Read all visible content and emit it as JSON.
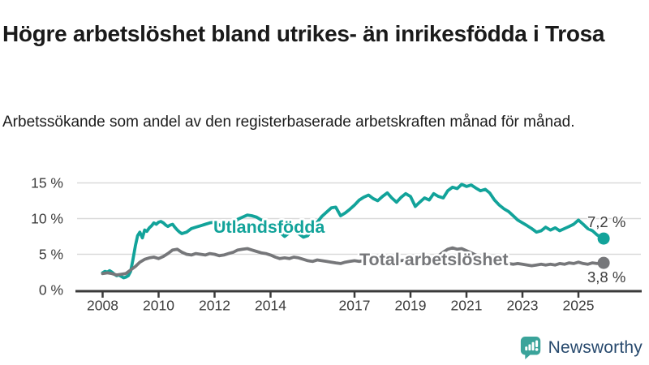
{
  "header": {
    "title": "Högre arbetslöshet bland utrikes- än inrikesfödda i Trosa",
    "subtitle": "Arbetssökande som andel av den registerbaserade arbetskraften månad för månad."
  },
  "footer": {
    "brand": "Newsworthy",
    "brand_color": "#27496d",
    "icon": "bar-chart-speech-bubble-icon",
    "icon_color": "#3aa39a"
  },
  "chart_data": {
    "type": "line",
    "title": "Högre arbetslöshet bland utrikes- än inrikesfödda i Trosa",
    "xlabel": "",
    "ylabel": "",
    "grid": true,
    "legend_position": "inline-labels",
    "xlim": [
      2007.0,
      2027.2
    ],
    "ylim": [
      0,
      15
    ],
    "x_ticks": [
      2008,
      2010,
      2012,
      2014,
      2017,
      2019,
      2021,
      2023,
      2025
    ],
    "y_ticks": {
      "values": [
        0,
        5,
        10,
        15
      ],
      "labels": [
        "0 %",
        "5 %",
        "10 %",
        "15 %"
      ]
    },
    "colors": {
      "grid": "#d9d9d9",
      "axis": "#3a3a3a",
      "axis_text": "#3c3c3c"
    },
    "series": [
      {
        "name": "Utlandsfödda",
        "color": "#12a39a",
        "end_value": 7.2,
        "end_label": "7,2 %",
        "points": [
          [
            2008.0,
            2.4
          ],
          [
            2008.08,
            2.6
          ],
          [
            2008.17,
            2.5
          ],
          [
            2008.25,
            2.7
          ],
          [
            2008.33,
            2.5
          ],
          [
            2008.42,
            2.2
          ],
          [
            2008.5,
            2.0
          ],
          [
            2008.58,
            2.1
          ],
          [
            2008.67,
            1.9
          ],
          [
            2008.75,
            1.7
          ],
          [
            2008.83,
            1.8
          ],
          [
            2008.92,
            2.0
          ],
          [
            2009.0,
            2.6
          ],
          [
            2009.08,
            4.2
          ],
          [
            2009.17,
            6.2
          ],
          [
            2009.25,
            7.6
          ],
          [
            2009.33,
            8.1
          ],
          [
            2009.42,
            7.3
          ],
          [
            2009.5,
            8.4
          ],
          [
            2009.58,
            8.2
          ],
          [
            2009.67,
            8.7
          ],
          [
            2009.75,
            9.0
          ],
          [
            2009.83,
            9.4
          ],
          [
            2009.92,
            9.2
          ],
          [
            2010.0,
            9.5
          ],
          [
            2010.08,
            9.6
          ],
          [
            2010.17,
            9.4
          ],
          [
            2010.25,
            9.1
          ],
          [
            2010.33,
            8.9
          ],
          [
            2010.42,
            9.1
          ],
          [
            2010.5,
            9.2
          ],
          [
            2010.58,
            8.8
          ],
          [
            2010.67,
            8.4
          ],
          [
            2010.75,
            8.1
          ],
          [
            2010.83,
            7.9
          ],
          [
            2010.92,
            8.0
          ],
          [
            2011.0,
            8.1
          ],
          [
            2011.17,
            8.6
          ],
          [
            2011.33,
            8.8
          ],
          [
            2011.5,
            9.0
          ],
          [
            2011.67,
            9.2
          ],
          [
            2011.83,
            9.4
          ],
          [
            2012.0,
            9.5
          ],
          [
            2012.17,
            9.1
          ],
          [
            2012.33,
            8.9
          ],
          [
            2012.5,
            8.8
          ],
          [
            2012.67,
            9.3
          ],
          [
            2012.83,
            9.9
          ],
          [
            2013.0,
            10.2
          ],
          [
            2013.17,
            10.5
          ],
          [
            2013.33,
            10.4
          ],
          [
            2013.5,
            10.2
          ],
          [
            2013.67,
            9.8
          ],
          [
            2013.83,
            9.4
          ],
          [
            2014.0,
            9.1
          ],
          [
            2014.17,
            8.7
          ],
          [
            2014.33,
            8.1
          ],
          [
            2014.5,
            7.5
          ],
          [
            2014.67,
            8.0
          ],
          [
            2014.83,
            8.3
          ],
          [
            2015.0,
            7.9
          ],
          [
            2015.17,
            7.4
          ],
          [
            2015.33,
            7.6
          ],
          [
            2015.5,
            8.6
          ],
          [
            2015.67,
            9.5
          ],
          [
            2015.83,
            10.3
          ],
          [
            2016.0,
            10.9
          ],
          [
            2016.17,
            11.5
          ],
          [
            2016.33,
            11.6
          ],
          [
            2016.5,
            10.4
          ],
          [
            2016.67,
            10.8
          ],
          [
            2016.83,
            11.3
          ],
          [
            2017.0,
            11.9
          ],
          [
            2017.17,
            12.6
          ],
          [
            2017.33,
            13.0
          ],
          [
            2017.5,
            13.3
          ],
          [
            2017.67,
            12.8
          ],
          [
            2017.83,
            12.5
          ],
          [
            2018.0,
            13.1
          ],
          [
            2018.17,
            13.6
          ],
          [
            2018.33,
            12.9
          ],
          [
            2018.5,
            12.3
          ],
          [
            2018.67,
            13.0
          ],
          [
            2018.83,
            13.5
          ],
          [
            2019.0,
            13.1
          ],
          [
            2019.17,
            11.7
          ],
          [
            2019.33,
            12.3
          ],
          [
            2019.5,
            12.9
          ],
          [
            2019.67,
            12.6
          ],
          [
            2019.83,
            13.5
          ],
          [
            2020.0,
            13.1
          ],
          [
            2020.17,
            12.9
          ],
          [
            2020.33,
            13.9
          ],
          [
            2020.5,
            14.4
          ],
          [
            2020.67,
            14.2
          ],
          [
            2020.83,
            14.8
          ],
          [
            2021.0,
            14.5
          ],
          [
            2021.17,
            14.7
          ],
          [
            2021.33,
            14.3
          ],
          [
            2021.5,
            13.9
          ],
          [
            2021.67,
            14.1
          ],
          [
            2021.83,
            13.6
          ],
          [
            2022.0,
            12.6
          ],
          [
            2022.17,
            11.9
          ],
          [
            2022.33,
            11.4
          ],
          [
            2022.5,
            11.0
          ],
          [
            2022.67,
            10.4
          ],
          [
            2022.83,
            9.8
          ],
          [
            2023.0,
            9.4
          ],
          [
            2023.17,
            9.0
          ],
          [
            2023.33,
            8.6
          ],
          [
            2023.5,
            8.1
          ],
          [
            2023.67,
            8.3
          ],
          [
            2023.83,
            8.8
          ],
          [
            2024.0,
            8.4
          ],
          [
            2024.17,
            8.7
          ],
          [
            2024.33,
            8.3
          ],
          [
            2024.5,
            8.6
          ],
          [
            2024.67,
            8.9
          ],
          [
            2024.83,
            9.2
          ],
          [
            2025.0,
            9.8
          ],
          [
            2025.17,
            9.2
          ],
          [
            2025.33,
            8.6
          ],
          [
            2025.5,
            8.3
          ],
          [
            2025.67,
            7.7
          ],
          [
            2025.9,
            7.2
          ]
        ]
      },
      {
        "name": "Total arbetslöshet",
        "color": "#76777a",
        "end_value": 3.8,
        "end_label": "3,8 %",
        "points": [
          [
            2008.0,
            2.3
          ],
          [
            2008.17,
            2.4
          ],
          [
            2008.33,
            2.3
          ],
          [
            2008.5,
            2.1
          ],
          [
            2008.67,
            2.2
          ],
          [
            2008.83,
            2.3
          ],
          [
            2009.0,
            2.8
          ],
          [
            2009.17,
            3.3
          ],
          [
            2009.33,
            3.9
          ],
          [
            2009.5,
            4.3
          ],
          [
            2009.67,
            4.5
          ],
          [
            2009.83,
            4.6
          ],
          [
            2010.0,
            4.4
          ],
          [
            2010.17,
            4.7
          ],
          [
            2010.33,
            5.1
          ],
          [
            2010.5,
            5.6
          ],
          [
            2010.67,
            5.7
          ],
          [
            2010.83,
            5.3
          ],
          [
            2011.0,
            5.0
          ],
          [
            2011.17,
            4.9
          ],
          [
            2011.33,
            5.1
          ],
          [
            2011.5,
            5.0
          ],
          [
            2011.67,
            4.9
          ],
          [
            2011.83,
            5.1
          ],
          [
            2012.0,
            5.0
          ],
          [
            2012.17,
            4.8
          ],
          [
            2012.33,
            4.9
          ],
          [
            2012.5,
            5.1
          ],
          [
            2012.67,
            5.3
          ],
          [
            2012.83,
            5.6
          ],
          [
            2013.0,
            5.7
          ],
          [
            2013.17,
            5.8
          ],
          [
            2013.33,
            5.6
          ],
          [
            2013.5,
            5.4
          ],
          [
            2013.67,
            5.2
          ],
          [
            2013.83,
            5.1
          ],
          [
            2014.0,
            4.9
          ],
          [
            2014.17,
            4.6
          ],
          [
            2014.33,
            4.4
          ],
          [
            2014.5,
            4.5
          ],
          [
            2014.67,
            4.4
          ],
          [
            2014.83,
            4.6
          ],
          [
            2015.0,
            4.5
          ],
          [
            2015.17,
            4.3
          ],
          [
            2015.33,
            4.1
          ],
          [
            2015.5,
            4.0
          ],
          [
            2015.67,
            4.2
          ],
          [
            2015.83,
            4.1
          ],
          [
            2016.0,
            4.0
          ],
          [
            2016.17,
            3.9
          ],
          [
            2016.33,
            3.8
          ],
          [
            2016.5,
            3.7
          ],
          [
            2016.67,
            3.9
          ],
          [
            2016.83,
            4.0
          ],
          [
            2017.0,
            4.1
          ],
          [
            2017.17,
            4.0
          ],
          [
            2017.33,
            4.1
          ],
          [
            2017.5,
            4.0
          ],
          [
            2017.67,
            3.9
          ],
          [
            2017.83,
            4.0
          ],
          [
            2018.0,
            4.0
          ],
          [
            2018.17,
            3.9
          ],
          [
            2018.33,
            4.0
          ],
          [
            2018.5,
            4.1
          ],
          [
            2018.67,
            4.1
          ],
          [
            2018.83,
            4.2
          ],
          [
            2019.0,
            4.2
          ],
          [
            2019.17,
            4.3
          ],
          [
            2019.33,
            4.4
          ],
          [
            2019.5,
            4.3
          ],
          [
            2019.67,
            4.4
          ],
          [
            2019.83,
            4.6
          ],
          [
            2020.0,
            4.8
          ],
          [
            2020.17,
            5.3
          ],
          [
            2020.33,
            5.7
          ],
          [
            2020.5,
            5.9
          ],
          [
            2020.67,
            5.7
          ],
          [
            2020.83,
            5.8
          ],
          [
            2021.0,
            5.5
          ],
          [
            2021.17,
            5.2
          ],
          [
            2021.33,
            4.9
          ],
          [
            2021.5,
            4.6
          ],
          [
            2021.67,
            4.3
          ],
          [
            2021.83,
            4.1
          ],
          [
            2022.0,
            4.0
          ],
          [
            2022.17,
            3.9
          ],
          [
            2022.33,
            3.8
          ],
          [
            2022.5,
            3.7
          ],
          [
            2022.67,
            3.6
          ],
          [
            2022.83,
            3.7
          ],
          [
            2023.0,
            3.6
          ],
          [
            2023.17,
            3.5
          ],
          [
            2023.33,
            3.4
          ],
          [
            2023.5,
            3.5
          ],
          [
            2023.67,
            3.6
          ],
          [
            2023.83,
            3.5
          ],
          [
            2024.0,
            3.6
          ],
          [
            2024.17,
            3.5
          ],
          [
            2024.33,
            3.7
          ],
          [
            2024.5,
            3.6
          ],
          [
            2024.67,
            3.8
          ],
          [
            2024.83,
            3.7
          ],
          [
            2025.0,
            3.9
          ],
          [
            2025.17,
            3.7
          ],
          [
            2025.33,
            3.6
          ],
          [
            2025.5,
            3.8
          ],
          [
            2025.67,
            3.7
          ],
          [
            2025.9,
            3.8
          ]
        ]
      }
    ],
    "annotations": [
      {
        "id": "series-label-0",
        "text": "Utlandsfödda",
        "color": "#12a39a"
      },
      {
        "id": "series-label-1",
        "text": "Total arbetslöshet",
        "color": "#76777a"
      },
      {
        "id": "end-label-0",
        "text": "7,2 %",
        "color": "#3c3c3c"
      },
      {
        "id": "end-label-1",
        "text": "3,8 %",
        "color": "#3c3c3c"
      }
    ]
  }
}
